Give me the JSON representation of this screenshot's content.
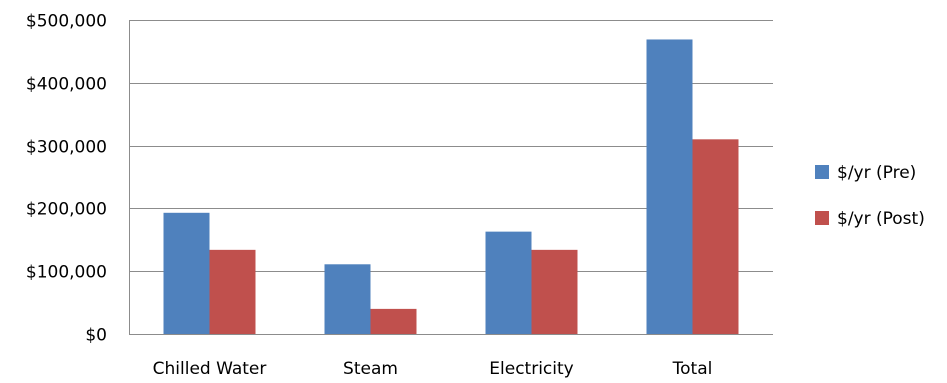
{
  "chart_data": {
    "type": "bar",
    "categories": [
      "Chilled Water",
      "Steam",
      "Electricity",
      "Total"
    ],
    "series": [
      {
        "name": "$/yr (Pre)",
        "values": [
          193000,
          111000,
          163000,
          469000
        ],
        "color": "#4F81BD"
      },
      {
        "name": "$/yr (Post)",
        "values": [
          134000,
          40000,
          134000,
          310000
        ],
        "color": "#C0504D"
      }
    ],
    "yticks": [
      "$0",
      "$100,000",
      "$200,000",
      "$300,000",
      "$400,000",
      "$500,000"
    ],
    "ytick_values": [
      0,
      100000,
      200000,
      300000,
      400000,
      500000
    ],
    "ylim": [
      0,
      500000
    ],
    "grid": true,
    "legend_position": "right",
    "gridline_color": "#8C8C8C"
  }
}
